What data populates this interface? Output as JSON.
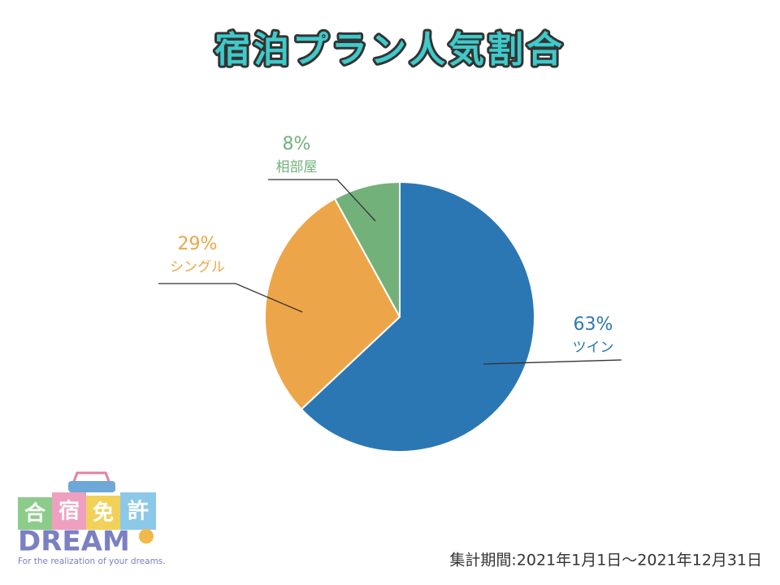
{
  "chart_data": {
    "type": "pie",
    "title": "宿泊プラン人気割合",
    "categories": [
      "ツイン",
      "シングル",
      "相部屋"
    ],
    "values": [
      63,
      29,
      8
    ],
    "value_labels": [
      "63%",
      "29%",
      "8%"
    ],
    "colors": [
      "#2b77b4",
      "#eca649",
      "#73b17b"
    ],
    "note": "集計期間:2021年1月1日〜2021年12月31日"
  },
  "logo": {
    "blocks": [
      "合",
      "宿",
      "免",
      "許"
    ],
    "name": "DREAM",
    "tagline": "For the realization of your dreams."
  }
}
